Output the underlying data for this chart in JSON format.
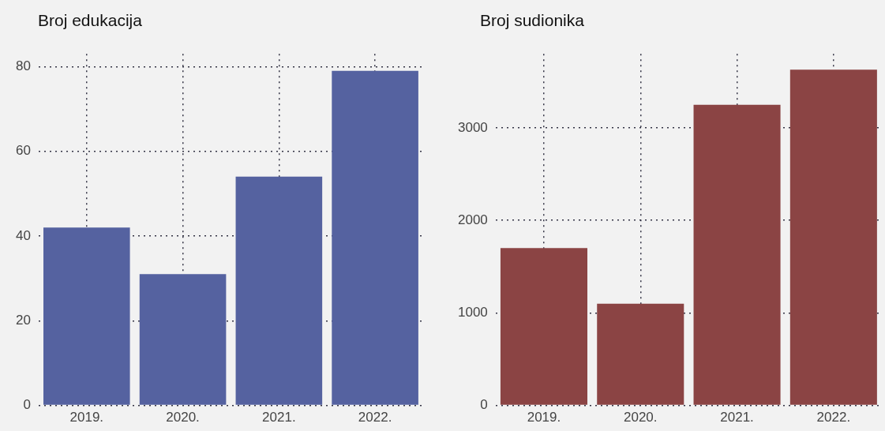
{
  "chart_data": [
    {
      "type": "bar",
      "title": "Broj edukacija",
      "categories": [
        "2019.",
        "2020.",
        "2021.",
        "2022."
      ],
      "series": [
        {
          "color": "#5562a0",
          "values": [
            42,
            31,
            54,
            79
          ]
        }
      ],
      "ylim": [
        0,
        83
      ],
      "yticks": [
        0,
        20,
        40,
        60,
        80
      ],
      "grid": true,
      "legend": false
    },
    {
      "type": "bar",
      "title": "Broj sudionika",
      "categories": [
        "2019.",
        "2020.",
        "2021.",
        "2022."
      ],
      "series": [
        {
          "color": "#8b4444",
          "values": [
            1700,
            1100,
            3250,
            3630
          ]
        }
      ],
      "ylim": [
        0,
        3800
      ],
      "yticks": [
        0,
        1000,
        2000,
        3000
      ],
      "grid": true,
      "legend": false
    }
  ]
}
